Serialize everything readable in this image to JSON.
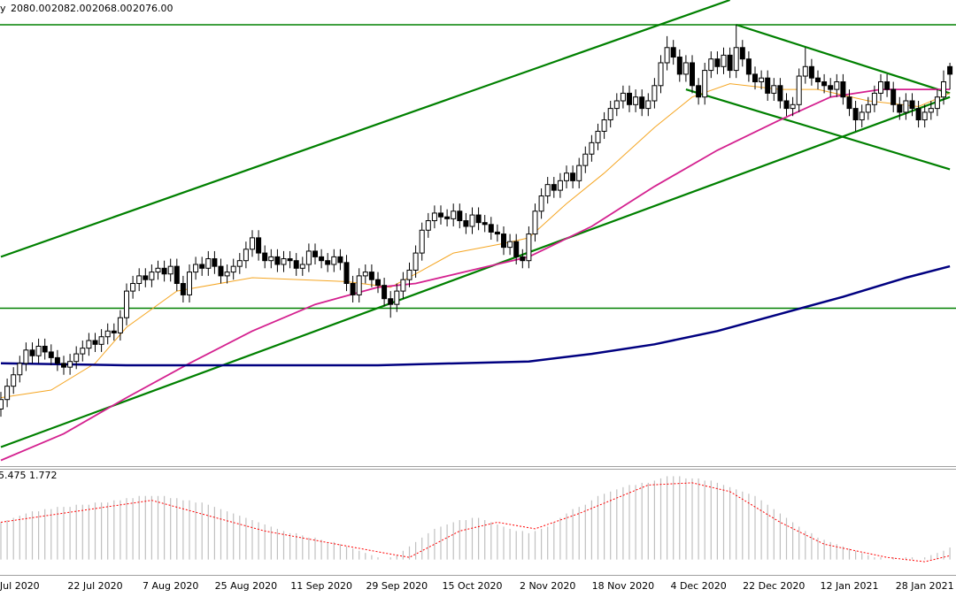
{
  "chart_data": [
    {
      "type": "candlestick",
      "header": "y",
      "ohlc_labels": [
        "2080.00",
        "2082.00",
        "2068.00",
        "2076.00"
      ],
      "categories": [
        null,
        null,
        null,
        "Jul 2020",
        null,
        null,
        null,
        null,
        null,
        null,
        null,
        null,
        null,
        null,
        null,
        "22 Jul 2020",
        null,
        null,
        null,
        null,
        null,
        null,
        null,
        null,
        null,
        null,
        null,
        "7 Aug 2020",
        null,
        null,
        null,
        null,
        null,
        null,
        null,
        null,
        null,
        null,
        null,
        "25 Aug 2020",
        null,
        null,
        null,
        null,
        null,
        null,
        null,
        null,
        null,
        null,
        null,
        "11 Sep 2020",
        null,
        null,
        null,
        null,
        null,
        null,
        null,
        null,
        null,
        null,
        null,
        "29 Sep 2020",
        null,
        null,
        null,
        null,
        null,
        null,
        null,
        null,
        null,
        null,
        null,
        "15 Oct 2020",
        null,
        null,
        null,
        null,
        null,
        null,
        null,
        null,
        null,
        null,
        null,
        "2 Nov 2020",
        null,
        null,
        null,
        null,
        null,
        null,
        null,
        null,
        null,
        null,
        null,
        "18 Nov 2020",
        null,
        null,
        null,
        null,
        null,
        null,
        null,
        null,
        null,
        null,
        null,
        "4 Dec 2020",
        null,
        null,
        null,
        null,
        null,
        null,
        null,
        null,
        null,
        null,
        null,
        "22 Dec 2020",
        null,
        null,
        null,
        null,
        null,
        null,
        null,
        null,
        null,
        null,
        null,
        "12 Jan 2021",
        null,
        null,
        null,
        null,
        null,
        null,
        null,
        null,
        null,
        null,
        null,
        "28 Jan 2021",
        null,
        null,
        null,
        null
      ],
      "open": [
        1900,
        1905,
        1912,
        1918,
        1924,
        1931,
        1928,
        1933,
        1930,
        1927,
        1924,
        1922,
        1925,
        1929,
        1932,
        1936,
        1934,
        1938,
        1941,
        1940,
        1948,
        1962,
        1966,
        1970,
        1968,
        1972,
        1974,
        1971,
        1975,
        1966,
        1960,
        1972,
        1976,
        1974,
        1979,
        1975,
        1970,
        1972,
        1975,
        1978,
        1984,
        1990,
        1982,
        1978,
        1980,
        1976,
        1979,
        1978,
        1974,
        1976,
        1983,
        1980,
        1978,
        1976,
        1980,
        1977,
        1966,
        1960,
        1970,
        1972,
        1968,
        1965,
        1958,
        1955,
        1962,
        1968,
        1973,
        1982,
        1994,
        1999,
        2003,
        2001,
        2000,
        2004,
        1999,
        1996,
        2002,
        1998,
        1997,
        1993,
        1992,
        1985,
        1988,
        1980,
        1978,
        1992,
        2004,
        2012,
        2018,
        2015,
        2020,
        2024,
        2020,
        2028,
        2034,
        2040,
        2046,
        2052,
        2058,
        2062,
        2066,
        2060,
        2064,
        2058,
        2062,
        2070,
        2082,
        2090,
        2085,
        2076,
        2082,
        2070,
        2064,
        2078,
        2084,
        2080,
        2086,
        2078,
        2090,
        2084,
        2076,
        2072,
        2074,
        2066,
        2070,
        2062,
        2058,
        2060,
        2075,
        2080,
        2074,
        2072,
        2070,
        2068,
        2072,
        2064,
        2058,
        2052,
        2056,
        2060,
        2066,
        2072,
        2068,
        2060,
        2056,
        2062,
        2058,
        2052,
        2056,
        2058,
        2064,
        2080
      ],
      "high": [
        1909,
        1916,
        1922,
        1928,
        1935,
        1935,
        1937,
        1937,
        1934,
        1931,
        1928,
        1929,
        1933,
        1936,
        1940,
        1940,
        1942,
        1945,
        1945,
        1952,
        1966,
        1970,
        1974,
        1974,
        1976,
        1978,
        1978,
        1979,
        1979,
        1970,
        1976,
        1980,
        1980,
        1983,
        1983,
        1979,
        1976,
        1979,
        1982,
        1988,
        1994,
        1994,
        1986,
        1984,
        1984,
        1983,
        1983,
        1982,
        1980,
        1987,
        1987,
        1984,
        1982,
        1984,
        1984,
        1981,
        1970,
        1974,
        1976,
        1976,
        1972,
        1969,
        1962,
        1966,
        1972,
        1977,
        1986,
        1998,
        2003,
        2007,
        2007,
        2005,
        2008,
        2008,
        2003,
        2006,
        2006,
        2002,
        2001,
        1997,
        1996,
        1992,
        1992,
        1984,
        1996,
        2008,
        2016,
        2022,
        2022,
        2024,
        2028,
        2028,
        2032,
        2038,
        2044,
        2050,
        2056,
        2062,
        2066,
        2070,
        2070,
        2068,
        2068,
        2066,
        2074,
        2086,
        2096,
        2094,
        2089,
        2086,
        2086,
        2074,
        2082,
        2088,
        2088,
        2090,
        2090,
        2102,
        2094,
        2088,
        2080,
        2078,
        2078,
        2074,
        2074,
        2066,
        2064,
        2079,
        2090,
        2084,
        2078,
        2076,
        2074,
        2076,
        2076,
        2068,
        2062,
        2060,
        2064,
        2070,
        2076,
        2076,
        2072,
        2064,
        2066,
        2066,
        2062,
        2060,
        2062,
        2068,
        2078,
        2082
      ],
      "low": [
        1896,
        1901,
        1908,
        1914,
        1920,
        1924,
        1924,
        1926,
        1923,
        1920,
        1918,
        1918,
        1921,
        1925,
        1928,
        1930,
        1930,
        1934,
        1936,
        1936,
        1944,
        1958,
        1962,
        1964,
        1964,
        1968,
        1967,
        1967,
        1962,
        1956,
        1956,
        1968,
        1970,
        1970,
        1971,
        1966,
        1966,
        1968,
        1971,
        1974,
        1980,
        1978,
        1974,
        1974,
        1972,
        1972,
        1974,
        1970,
        1970,
        1972,
        1976,
        1974,
        1972,
        1972,
        1973,
        1962,
        1956,
        1956,
        1966,
        1964,
        1961,
        1954,
        1948,
        1951,
        1958,
        1964,
        1969,
        1978,
        1990,
        1995,
        1997,
        1996,
        1996,
        1995,
        1992,
        1992,
        1994,
        1993,
        1989,
        1988,
        1981,
        1981,
        1976,
        1974,
        1974,
        1988,
        2000,
        2008,
        2011,
        2011,
        2016,
        2016,
        2016,
        2024,
        2030,
        2036,
        2042,
        2048,
        2054,
        2058,
        2056,
        2056,
        2054,
        2054,
        2058,
        2066,
        2078,
        2081,
        2072,
        2072,
        2066,
        2060,
        2060,
        2074,
        2076,
        2076,
        2074,
        2074,
        2080,
        2072,
        2068,
        2068,
        2062,
        2062,
        2058,
        2054,
        2054,
        2056,
        2071,
        2070,
        2068,
        2066,
        2064,
        2064,
        2060,
        2054,
        2046,
        2048,
        2052,
        2056,
        2062,
        2064,
        2056,
        2052,
        2052,
        2054,
        2048,
        2048,
        2052,
        2054,
        2060,
        2068
      ],
      "close": [
        1905,
        1912,
        1918,
        1924,
        1931,
        1928,
        1933,
        1930,
        1927,
        1924,
        1922,
        1925,
        1929,
        1932,
        1936,
        1934,
        1938,
        1941,
        1940,
        1948,
        1962,
        1966,
        1970,
        1968,
        1972,
        1974,
        1971,
        1975,
        1966,
        1960,
        1972,
        1976,
        1974,
        1979,
        1975,
        1970,
        1972,
        1975,
        1978,
        1984,
        1990,
        1982,
        1978,
        1980,
        1976,
        1979,
        1978,
        1974,
        1976,
        1983,
        1980,
        1978,
        1976,
        1980,
        1977,
        1966,
        1960,
        1970,
        1972,
        1968,
        1965,
        1958,
        1955,
        1962,
        1968,
        1973,
        1982,
        1994,
        1999,
        2003,
        2001,
        2000,
        2004,
        1999,
        1996,
        2002,
        1998,
        1997,
        1993,
        1992,
        1985,
        1988,
        1980,
        1978,
        1992,
        2004,
        2012,
        2018,
        2015,
        2020,
        2024,
        2020,
        2028,
        2034,
        2040,
        2046,
        2052,
        2058,
        2062,
        2066,
        2060,
        2064,
        2058,
        2062,
        2070,
        2082,
        2090,
        2085,
        2076,
        2082,
        2070,
        2064,
        2078,
        2084,
        2080,
        2086,
        2078,
        2090,
        2084,
        2076,
        2072,
        2074,
        2066,
        2070,
        2062,
        2058,
        2060,
        2075,
        2080,
        2074,
        2072,
        2070,
        2068,
        2072,
        2064,
        2058,
        2052,
        2056,
        2060,
        2066,
        2072,
        2068,
        2060,
        2056,
        2062,
        2058,
        2052,
        2056,
        2058,
        2064,
        2072,
        2076
      ],
      "ylim": [
        1870,
        2115
      ],
      "up_color": "#ffffff",
      "down_color": "#000000",
      "wick_color": "#000000",
      "moving_averages": [
        {
          "color": "#f5a623",
          "x": [
            0,
            8,
            15,
            20,
            28,
            40,
            55,
            62,
            66,
            72,
            80,
            84,
            90,
            96,
            104,
            110,
            116,
            124,
            130,
            138,
            146,
            151
          ],
          "values": [
            1906,
            1910,
            1924,
            1943,
            1962,
            1969,
            1967,
            1964,
            1971,
            1982,
            1987,
            1990,
            2008,
            2024,
            2048,
            2064,
            2071,
            2068,
            2068,
            2062,
            2059,
            2066
          ]
        },
        {
          "color": "#d4218f",
          "x": [
            0,
            10,
            20,
            30,
            40,
            50,
            60,
            66,
            75,
            84,
            94,
            104,
            114,
            124,
            132,
            140,
            151
          ],
          "values": [
            1873,
            1887,
            1906,
            1924,
            1941,
            1955,
            1964,
            1966,
            1973,
            1980,
            1996,
            2017,
            2036,
            2052,
            2064,
            2068,
            2068
          ]
        },
        {
          "color": "#000080",
          "x": [
            0,
            20,
            60,
            84,
            94,
            104,
            114,
            124,
            134,
            144,
            151
          ],
          "values": [
            1924,
            1923,
            1923,
            1925,
            1929,
            1934,
            1941,
            1950,
            1959,
            1969,
            1975
          ]
        }
      ],
      "trendlines": [
        {
          "color": "#008000",
          "x": [
            0,
            116
          ],
          "values": [
            1980,
            2115
          ]
        },
        {
          "color": "#008000",
          "x": [
            0,
            151
          ],
          "values": [
            1880,
            2064
          ]
        },
        {
          "color": "#008000",
          "x": [
            117,
            151
          ],
          "values": [
            2102,
            2066
          ]
        },
        {
          "color": "#008000",
          "x": [
            109,
            151
          ],
          "values": [
            2068,
            2026
          ]
        }
      ],
      "hlines": [
        {
          "value": 2102,
          "color": "#008000"
        },
        {
          "value": 1953,
          "color": "#008000"
        }
      ]
    },
    {
      "type": "bar",
      "header_labels": [
        "5.475",
        "1.772"
      ],
      "color": "#c0c0c0",
      "values": [
        17,
        18,
        19,
        20,
        21,
        22,
        22,
        23,
        23,
        24,
        24,
        24,
        25,
        25,
        25,
        26,
        26,
        26,
        27,
        27,
        28,
        28,
        29,
        29,
        29,
        29,
        29,
        28,
        28,
        27,
        27,
        26,
        26,
        25,
        24,
        23,
        22,
        21,
        20,
        19,
        18,
        17,
        16,
        15,
        14,
        13,
        12,
        12,
        11,
        10,
        10,
        9,
        8,
        8,
        7,
        6,
        5,
        4,
        3,
        2,
        1,
        0,
        1,
        2,
        4,
        6,
        8,
        10,
        12,
        14,
        15,
        16,
        17,
        18,
        18,
        19,
        19,
        18,
        17,
        16,
        15,
        14,
        13,
        13,
        12,
        13,
        14,
        15,
        17,
        19,
        21,
        23,
        24,
        25,
        27,
        29,
        30,
        31,
        32,
        33,
        34,
        34,
        35,
        35,
        36,
        37,
        38,
        38,
        38,
        37,
        37,
        37,
        36,
        36,
        35,
        34,
        33,
        32,
        31,
        30,
        29,
        27,
        25,
        23,
        21,
        19,
        17,
        15,
        13,
        12,
        10,
        9,
        8,
        7,
        6,
        5,
        4,
        3,
        2,
        1,
        1,
        0,
        1,
        0,
        1,
        1,
        0,
        1,
        2,
        3,
        4,
        5.475
      ],
      "ylim": [
        -7,
        41
      ],
      "signal": {
        "color": "#ff0000",
        "x": [
          0,
          24,
          42,
          61,
          65,
          73,
          79,
          85,
          92,
          103,
          110,
          116,
          124,
          131,
          141,
          147,
          151
        ],
        "values": [
          17,
          27,
          13,
          3,
          1,
          13,
          17,
          14,
          21,
          34,
          35,
          31,
          17,
          7,
          1,
          -1,
          1.772
        ]
      }
    }
  ]
}
